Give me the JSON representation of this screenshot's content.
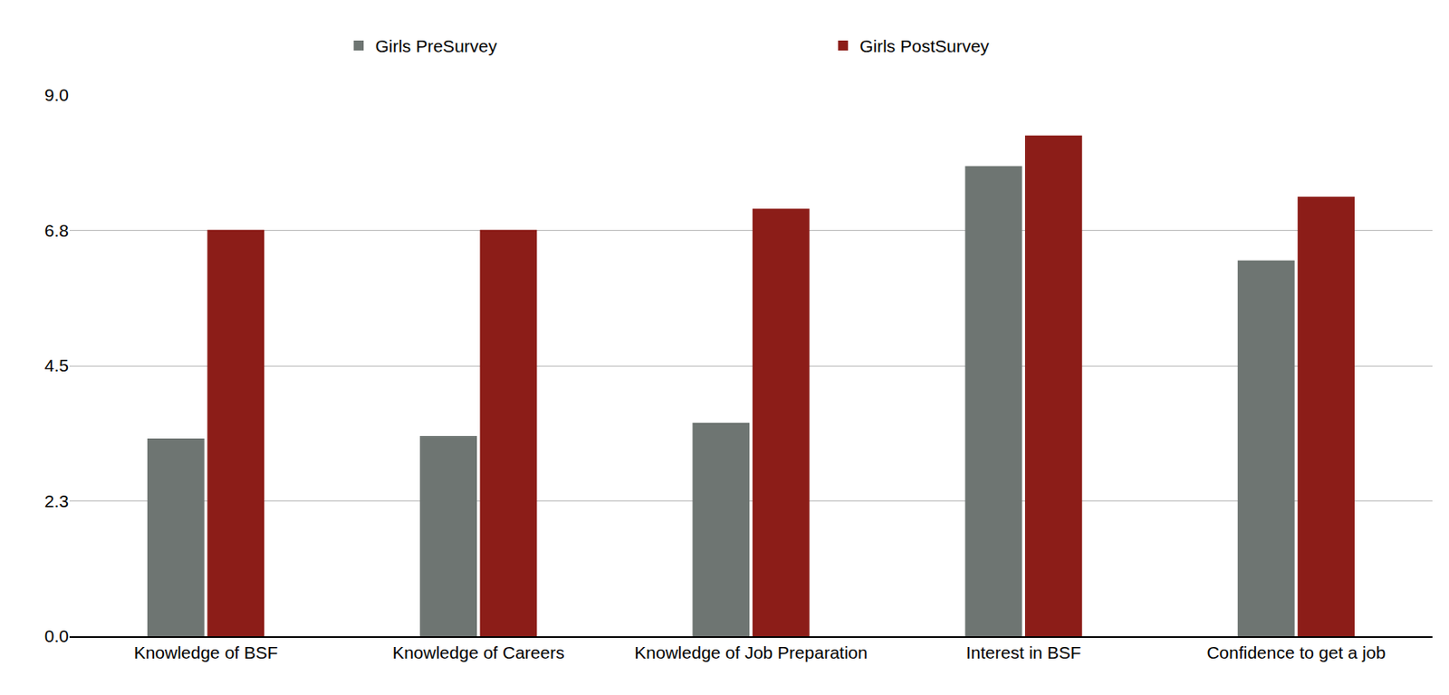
{
  "chart_data": {
    "type": "bar",
    "categories": [
      "Knowledge of BSF",
      "Knowledge of Careers",
      "Knowledge of Job Preparation",
      "Interest in BSF",
      "Confidence to get a job"
    ],
    "series": [
      {
        "name": "Girls PreSurvey",
        "color": "#6e7572",
        "values": [
          3.29,
          3.33,
          3.55,
          7.82,
          6.25
        ]
      },
      {
        "name": "Girls PostSurvey",
        "color": "#8c1d18",
        "values": [
          6.76,
          6.76,
          7.11,
          8.33,
          7.31
        ]
      }
    ],
    "ylim": [
      0,
      9
    ],
    "yticks": [
      {
        "value": 0,
        "label": "0.0"
      },
      {
        "value": 2.25,
        "label": "2.3"
      },
      4.5,
      {
        "value": 6.75,
        "label": "6.8"
      },
      {
        "value": 9,
        "label": "9.0"
      }
    ],
    "grid": true,
    "legend": "top"
  }
}
